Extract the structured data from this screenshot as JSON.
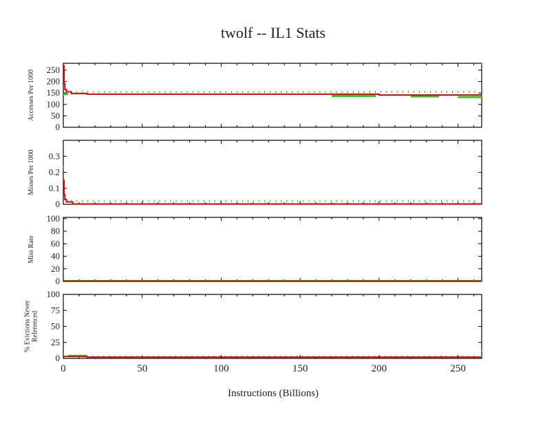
{
  "chart_data": {
    "type": "line",
    "title": "twolf -- IL1  Stats",
    "xlabel": "Instructions (Billions)",
    "xlim": [
      0,
      265
    ],
    "xticks": [
      0,
      50,
      100,
      150,
      200,
      250
    ],
    "colors": {
      "measured": "#dd0000",
      "sampled": "#22cc22"
    },
    "panels": [
      {
        "ylabel": [
          "Accesses Per 1000"
        ],
        "ylim": [
          0,
          280
        ],
        "yticks": [
          0,
          50,
          100,
          150,
          200,
          250
        ],
        "ytick_labels": [
          "0",
          "50",
          "100",
          "150",
          "200",
          "250"
        ],
        "red": [
          [
            0,
            270
          ],
          [
            0.5,
            190
          ],
          [
            1,
            165
          ],
          [
            2,
            155
          ],
          [
            5,
            148
          ],
          [
            15,
            145
          ],
          [
            170,
            145
          ],
          [
            200,
            141
          ],
          [
            265,
            141
          ]
        ],
        "green_lines": [
          [
            [
              0,
              145
            ],
            [
              3,
              145
            ]
          ],
          [
            [
              170,
              137
            ],
            [
              198,
              137
            ]
          ],
          [
            [
              220,
              135
            ],
            [
              238,
              135
            ]
          ],
          [
            [
              250,
              132
            ],
            [
              265,
              132
            ]
          ]
        ],
        "green_markers": {
          "y": 155,
          "from": 5,
          "to": 262,
          "step": 3.5
        },
        "green_edge": [
          [
            265,
            275
          ],
          [
            265,
            140
          ]
        ]
      },
      {
        "ylabel": [
          "Misses Per 1000"
        ],
        "ylim": [
          0,
          0.4
        ],
        "yticks": [
          0,
          0.1,
          0.2,
          0.3
        ],
        "ytick_labels": [
          "0",
          "0.1",
          "0.2",
          "0.3"
        ],
        "red": [
          [
            0,
            0.15
          ],
          [
            0.5,
            0.06
          ],
          [
            1,
            0.03
          ],
          [
            2,
            0.015
          ],
          [
            6,
            0.015
          ],
          [
            6,
            0.002
          ],
          [
            265,
            0.002
          ]
        ],
        "green_lines": [],
        "green_markers": {
          "y": 0.02,
          "from": 5,
          "to": 262,
          "step": 3.5
        },
        "green_edge": [
          [
            0,
            0.23
          ],
          [
            265,
            0.35
          ]
        ]
      },
      {
        "ylabel": [
          "Miss Rate"
        ],
        "ylim": [
          0,
          102
        ],
        "yticks": [
          0,
          20,
          40,
          60,
          80,
          100
        ],
        "ytick_labels": [
          "0",
          "20",
          "40",
          "60",
          "80",
          "100"
        ],
        "red": [
          [
            0,
            0.3
          ],
          [
            265,
            0.3
          ]
        ],
        "green_lines": [
          [
            [
              0,
              0.6
            ],
            [
              265,
              0.6
            ]
          ]
        ],
        "green_markers": {
          "y": 0.6,
          "from": 300,
          "to": 300,
          "step": 1
        },
        "green_edge": []
      },
      {
        "ylabel": [
          "% Evictions Never",
          "Referenced"
        ],
        "ylim": [
          0,
          100
        ],
        "yticks": [
          0,
          25,
          50,
          75,
          100
        ],
        "ytick_labels": [
          "0",
          "25",
          "50",
          "75",
          "100"
        ],
        "red": [
          [
            0,
            3
          ],
          [
            15,
            2
          ],
          [
            265,
            2
          ]
        ],
        "green_lines": [
          [
            [
              3,
              4
            ],
            [
              15,
              4
            ]
          ]
        ],
        "green_markers": {
          "y": 3,
          "from": 15,
          "to": 262,
          "step": 3.5
        },
        "green_edge": [
          [
            265,
            12
          ],
          [
            265,
            3
          ]
        ]
      }
    ]
  }
}
